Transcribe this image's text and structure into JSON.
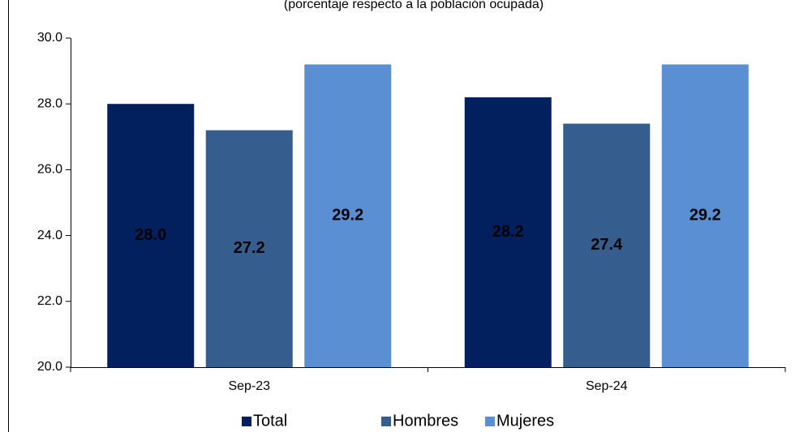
{
  "chart_data": {
    "type": "bar",
    "subtitle": "(porcentaje respecto a la población ocupada)",
    "categories": [
      "Sep-23",
      "Sep-24"
    ],
    "series": [
      {
        "name": "Total",
        "color": "#03205e",
        "values": [
          28.0,
          28.2
        ],
        "value_labels": [
          "28.0",
          "28.2"
        ]
      },
      {
        "name": "Hombres",
        "color": "#355e8e",
        "values": [
          27.2,
          27.4
        ],
        "value_labels": [
          "27.2",
          "27.4"
        ]
      },
      {
        "name": "Mujeres",
        "color": "#5b8fd3",
        "values": [
          29.2,
          29.2
        ],
        "value_labels": [
          "29.2",
          "29.2"
        ]
      }
    ],
    "ylim": [
      20,
      30
    ],
    "yticks": [
      {
        "value": 20,
        "label": "20.0"
      },
      {
        "value": 22,
        "label": "22.0"
      },
      {
        "value": 24,
        "label": "24.0"
      },
      {
        "value": 26,
        "label": "26.0"
      },
      {
        "value": 28,
        "label": "28.0"
      },
      {
        "value": 30,
        "label": "30.0"
      }
    ],
    "legend": "bottom"
  }
}
